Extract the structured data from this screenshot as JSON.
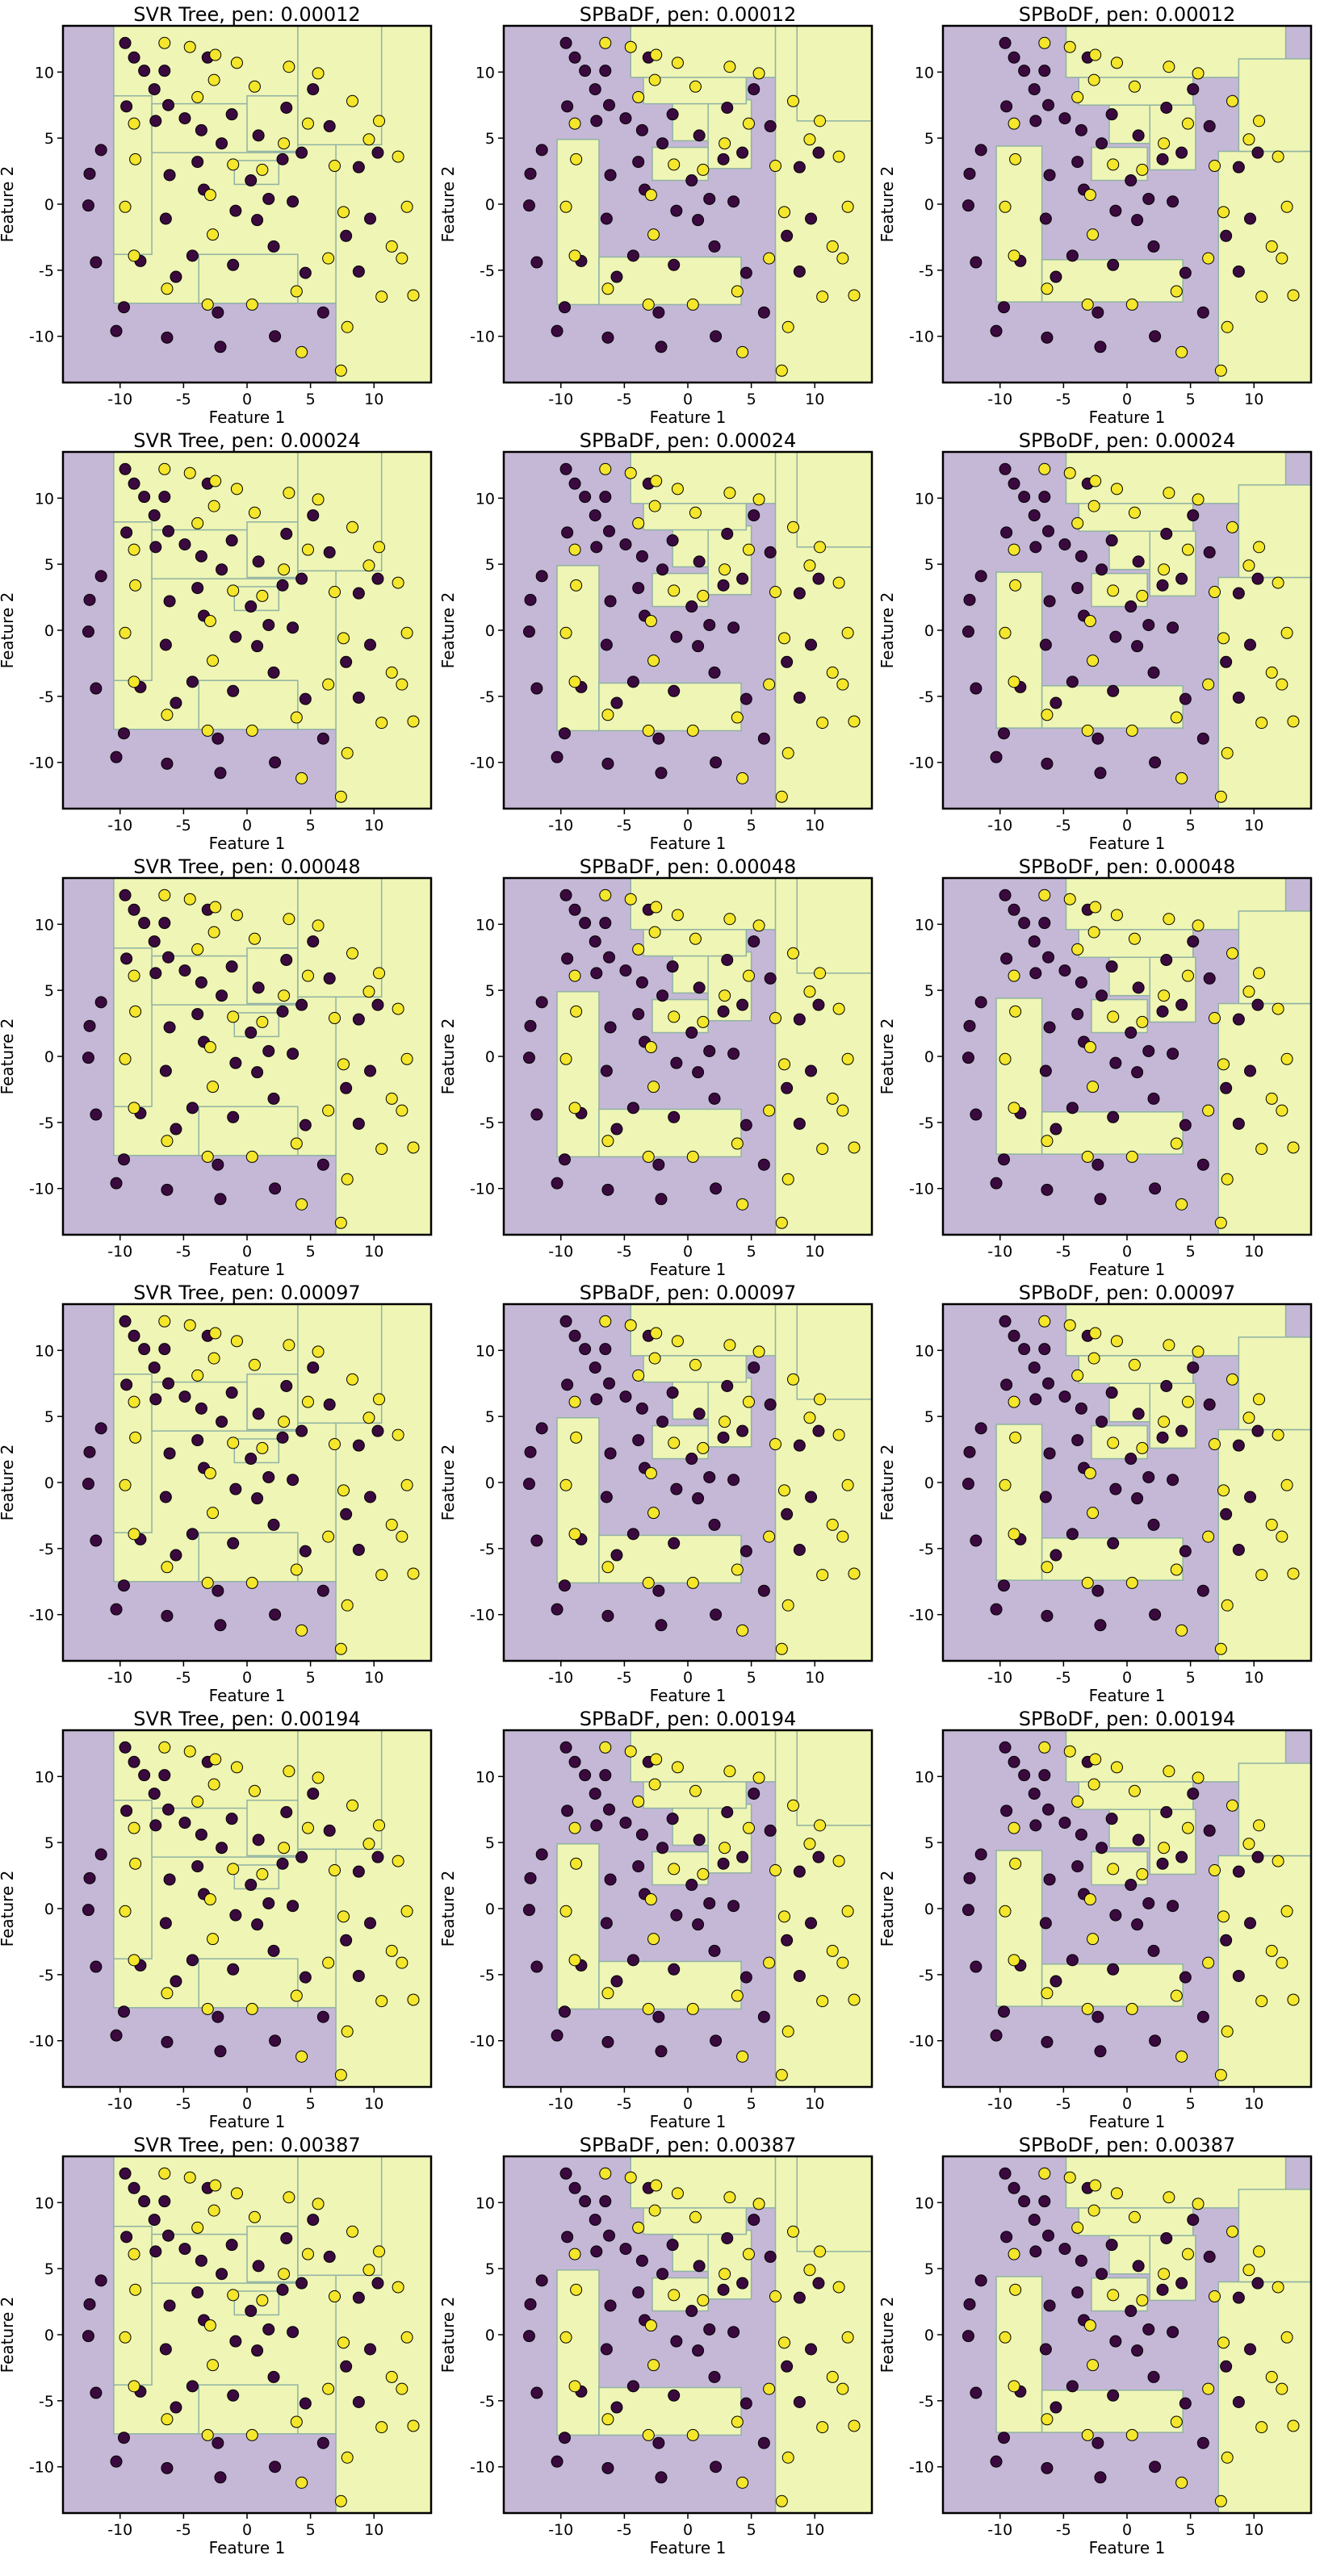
{
  "colors": {
    "class0_region": "#c5b8d6",
    "class1_region": "#eff5b4",
    "class0_point": "#3a0a3f",
    "class1_point": "#f4e62a",
    "boundary": "#8fb2a4"
  },
  "chart_data": {
    "type": "scatter",
    "grid": false,
    "legend": "none",
    "xlabel": "Feature 1",
    "ylabel": "Feature 2",
    "xticks": [
      -10,
      -5,
      0,
      5,
      10
    ],
    "yticks": [
      10,
      5,
      0,
      -5,
      -10
    ],
    "xlim": [
      -14.5,
      14.5
    ],
    "ylim": [
      -13.5,
      13.5
    ],
    "panels": [
      {
        "title": "SVR Tree, pen: 0.00012",
        "model": "svr",
        "row": 0,
        "col": 0
      },
      {
        "title": "SPBaDF, pen: 0.00012",
        "model": "spbadf",
        "row": 0,
        "col": 1
      },
      {
        "title": "SPBoDF, pen: 0.00012",
        "model": "spbodf",
        "row": 0,
        "col": 2
      },
      {
        "title": "SVR Tree, pen: 0.00024",
        "model": "svr",
        "row": 1,
        "col": 0
      },
      {
        "title": "SPBaDF, pen: 0.00024",
        "model": "spbadf",
        "row": 1,
        "col": 1
      },
      {
        "title": "SPBoDF, pen: 0.00024",
        "model": "spbodf",
        "row": 1,
        "col": 2
      },
      {
        "title": "SVR Tree, pen: 0.00048",
        "model": "svr",
        "row": 2,
        "col": 0
      },
      {
        "title": "SPBaDF, pen: 0.00048",
        "model": "spbadf",
        "row": 2,
        "col": 1
      },
      {
        "title": "SPBoDF, pen: 0.00048",
        "model": "spbodf",
        "row": 2,
        "col": 2
      },
      {
        "title": "SVR Tree, pen: 0.00097",
        "model": "svr",
        "row": 3,
        "col": 0
      },
      {
        "title": "SPBaDF, pen: 0.00097",
        "model": "spbadf",
        "row": 3,
        "col": 1
      },
      {
        "title": "SPBoDF, pen: 0.00097",
        "model": "spbodf",
        "row": 3,
        "col": 2
      },
      {
        "title": "SVR Tree, pen: 0.00194",
        "model": "svr",
        "row": 4,
        "col": 0
      },
      {
        "title": "SPBaDF, pen: 0.00194",
        "model": "spbadf",
        "row": 4,
        "col": 1
      },
      {
        "title": "SPBoDF, pen: 0.00194",
        "model": "spbodf",
        "row": 4,
        "col": 2
      },
      {
        "title": "SVR Tree, pen: 0.00387",
        "model": "svr",
        "row": 5,
        "col": 0
      },
      {
        "title": "SPBaDF, pen: 0.00387",
        "model": "spbadf",
        "row": 5,
        "col": 1
      },
      {
        "title": "SPBoDF, pen: 0.00387",
        "model": "spbodf",
        "row": 5,
        "col": 2
      }
    ],
    "class0_points": [
      [
        -2,
        4.6
      ],
      [
        -3.6,
        5.6
      ],
      [
        -4.9,
        6.5
      ],
      [
        -6.2,
        7.5
      ],
      [
        -7.3,
        8.7
      ],
      [
        -8.1,
        10.1
      ],
      [
        -8.9,
        11.1
      ],
      [
        -9.6,
        12.2
      ],
      [
        2.8,
        3.4
      ],
      [
        3.6,
        0.2
      ],
      [
        2.1,
        -3.2
      ],
      [
        -1.1,
        -4.6
      ],
      [
        -4.3,
        -3.9
      ],
      [
        -6.4,
        -1.1
      ],
      [
        -6.1,
        2.2
      ],
      [
        -3.9,
        3.2
      ],
      [
        -1.2,
        6.8
      ],
      [
        3.1,
        7.3
      ],
      [
        6.5,
        5.9
      ],
      [
        8.8,
        2.8
      ],
      [
        9.7,
        -1.1
      ],
      [
        8.8,
        -5.1
      ],
      [
        6.0,
        -8.2
      ],
      [
        2.2,
        -10.0
      ],
      [
        -2.1,
        -10.8
      ],
      [
        -6.3,
        -10.1
      ],
      [
        -9.7,
        -7.8
      ],
      [
        -11.9,
        -4.4
      ],
      [
        -12.5,
        -0.1
      ],
      [
        -11.5,
        4.1
      ],
      [
        -9.5,
        7.4
      ],
      [
        -6.5,
        10.1
      ],
      [
        -3.1,
        11.1
      ],
      [
        0.3,
        1.8
      ],
      [
        1.7,
        0.4
      ],
      [
        0.8,
        -1.2
      ],
      [
        -0.9,
        -0.5
      ],
      [
        4.6,
        -5.2
      ],
      [
        -5.6,
        -5.5
      ],
      [
        -2.3,
        -8.2
      ],
      [
        5.2,
        8.7
      ],
      [
        10.3,
        3.9
      ],
      [
        -10.3,
        -9.6
      ],
      [
        -12.4,
        2.3
      ],
      [
        -8.4,
        -4.3
      ],
      [
        7.8,
        -2.4
      ],
      [
        -7.2,
        6.3
      ],
      [
        0.9,
        5.2
      ],
      [
        4.3,
        3.9
      ],
      [
        -3.4,
        1.1
      ]
    ],
    "class1_points": [
      [
        -6.5,
        12.2
      ],
      [
        -4.5,
        11.9
      ],
      [
        -2.5,
        11.3
      ],
      [
        3.3,
        10.4
      ],
      [
        5.6,
        9.9
      ],
      [
        8.3,
        7.8
      ],
      [
        10.4,
        6.3
      ],
      [
        11.9,
        3.6
      ],
      [
        12.6,
        -0.2
      ],
      [
        12.2,
        -4.1
      ],
      [
        10.6,
        -7.0
      ],
      [
        7.9,
        -9.3
      ],
      [
        4.3,
        -11.2
      ],
      [
        -2.6,
        9.4
      ],
      [
        0.6,
        8.9
      ],
      [
        2.9,
        4.6
      ],
      [
        -3.9,
        8.1
      ],
      [
        -8.8,
        3.4
      ],
      [
        -9.6,
        -0.2
      ],
      [
        -8.9,
        -3.9
      ],
      [
        -6.3,
        -6.4
      ],
      [
        -3.1,
        -7.6
      ],
      [
        0.4,
        -7.6
      ],
      [
        3.9,
        -6.6
      ],
      [
        6.4,
        -4.1
      ],
      [
        7.6,
        -0.6
      ],
      [
        6.9,
        2.9
      ],
      [
        1.2,
        2.6
      ],
      [
        -1.1,
        3.0
      ],
      [
        -2.9,
        0.7
      ],
      [
        -0.8,
        10.7
      ],
      [
        4.8,
        6.1
      ],
      [
        11.4,
        -3.2
      ],
      [
        9.6,
        4.9
      ],
      [
        -8.9,
        6.1
      ],
      [
        13.1,
        -6.9
      ],
      [
        7.4,
        -12.6
      ],
      [
        -2.7,
        -2.3
      ]
    ]
  }
}
